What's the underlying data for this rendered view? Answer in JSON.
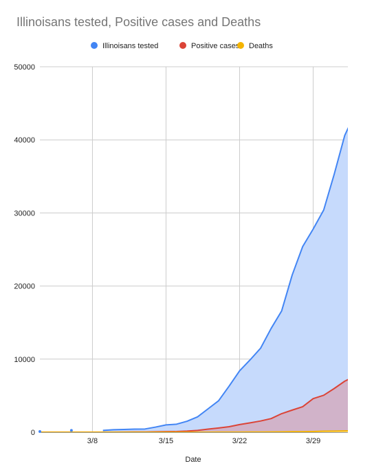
{
  "chart_data": {
    "type": "area",
    "title": "Illinoisans tested, Positive cases and Deaths",
    "xlabel": "Date",
    "ylabel": "",
    "ylim": [
      0,
      50000
    ],
    "yticks": [
      "0",
      "10000",
      "20000",
      "30000",
      "40000",
      "50000"
    ],
    "xticks": [
      {
        "label": "3/8",
        "day": 8
      },
      {
        "label": "3/15",
        "day": 15
      },
      {
        "label": "3/22",
        "day": 22
      },
      {
        "label": "3/29",
        "day": 29
      }
    ],
    "xrange_days": [
      3,
      32.3
    ],
    "legend_position": "top",
    "grid": true,
    "series": [
      {
        "name": "Illinoisans tested",
        "color": "#4285f4",
        "fill": "#c6dafc",
        "isolated_points": [
          [
            3,
            100
          ],
          [
            6,
            250
          ]
        ],
        "points": [
          [
            9,
            250
          ],
          [
            10,
            340
          ],
          [
            11,
            380
          ],
          [
            12,
            420
          ],
          [
            13,
            440
          ],
          [
            14,
            700
          ],
          [
            15,
            1000
          ],
          [
            16,
            1100
          ],
          [
            17,
            1500
          ],
          [
            18,
            2100
          ],
          [
            19,
            3200
          ],
          [
            20,
            4300
          ],
          [
            21,
            6300
          ],
          [
            22,
            8400
          ],
          [
            23,
            9900
          ],
          [
            24,
            11500
          ],
          [
            25,
            14200
          ],
          [
            26,
            16600
          ],
          [
            27,
            21500
          ],
          [
            28,
            25400
          ],
          [
            29,
            27800
          ],
          [
            30,
            30400
          ],
          [
            31,
            35300
          ],
          [
            32,
            40600
          ],
          [
            33,
            43700
          ]
        ]
      },
      {
        "name": "Positive cases",
        "color": "#db4437",
        "fill": "#d4a5b8",
        "points": [
          [
            3,
            10
          ],
          [
            4,
            10
          ],
          [
            5,
            10
          ],
          [
            6,
            10
          ],
          [
            7,
            10
          ],
          [
            8,
            10
          ],
          [
            9,
            10
          ],
          [
            10,
            15
          ],
          [
            11,
            20
          ],
          [
            12,
            30
          ],
          [
            13,
            40
          ],
          [
            14,
            60
          ],
          [
            15,
            80
          ],
          [
            16,
            90
          ],
          [
            17,
            150
          ],
          [
            18,
            250
          ],
          [
            19,
            420
          ],
          [
            20,
            580
          ],
          [
            21,
            750
          ],
          [
            22,
            1050
          ],
          [
            23,
            1285
          ],
          [
            24,
            1535
          ],
          [
            25,
            1865
          ],
          [
            26,
            2540
          ],
          [
            27,
            3025
          ],
          [
            28,
            3490
          ],
          [
            29,
            4600
          ],
          [
            30,
            5055
          ],
          [
            31,
            5980
          ],
          [
            32,
            6980
          ],
          [
            33,
            7700
          ]
        ]
      },
      {
        "name": "Deaths",
        "color": "#f4b400",
        "fill": "#f9e4a6",
        "points": [
          [
            3,
            0
          ],
          [
            10,
            0
          ],
          [
            15,
            0
          ],
          [
            17,
            1
          ],
          [
            19,
            4
          ],
          [
            20,
            9
          ],
          [
            21,
            12
          ],
          [
            22,
            16
          ],
          [
            23,
            19
          ],
          [
            24,
            26
          ],
          [
            25,
            34
          ],
          [
            26,
            47
          ],
          [
            27,
            65
          ],
          [
            28,
            73
          ],
          [
            29,
            99
          ],
          [
            30,
            141
          ],
          [
            31,
            157
          ],
          [
            32,
            172
          ],
          [
            33,
            210
          ]
        ]
      }
    ]
  }
}
